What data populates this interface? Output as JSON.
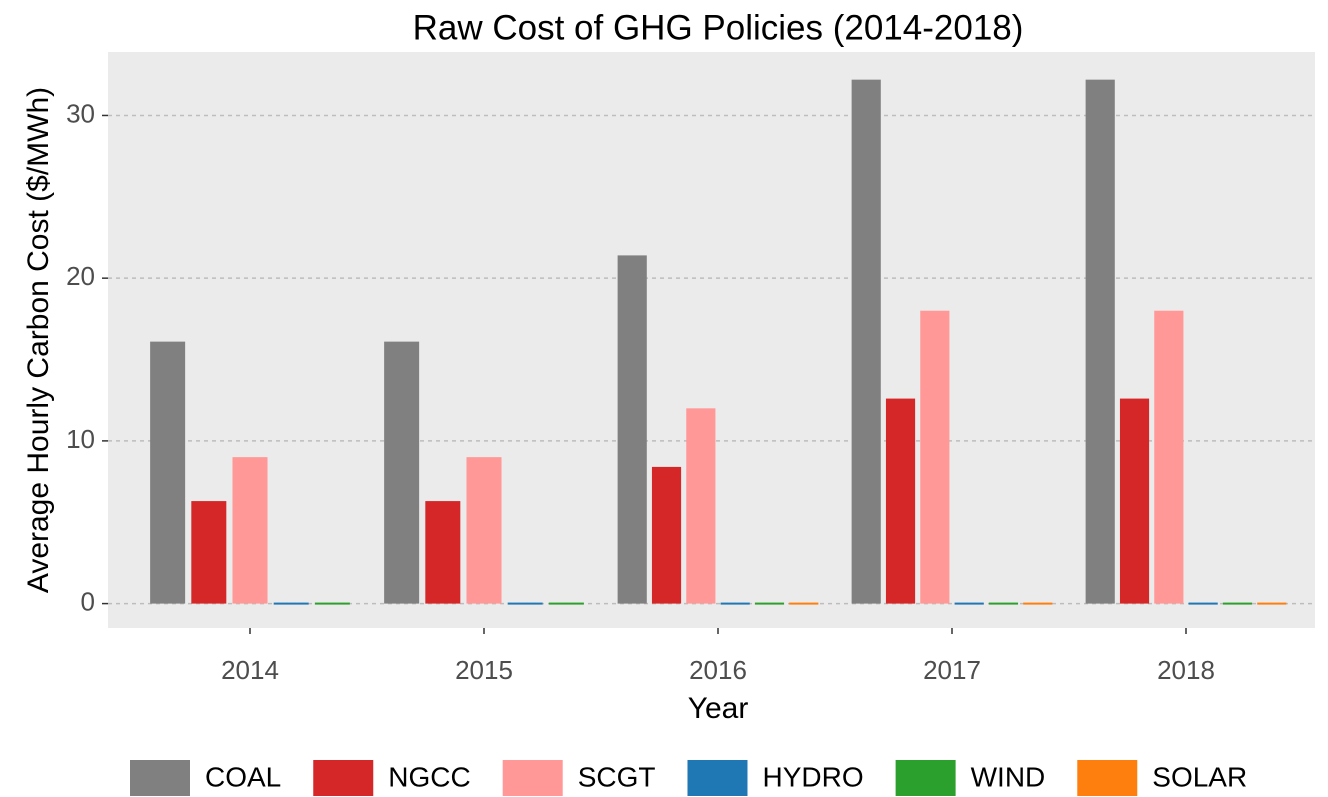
{
  "chart_data": {
    "type": "bar",
    "title": "Raw Cost of GHG Policies (2014-2018)",
    "x_label": "Year",
    "y_label": "Average Hourly Carbon Cost ($/MWh)",
    "categories": [
      "2014",
      "2015",
      "2016",
      "2017",
      "2018"
    ],
    "series": [
      {
        "name": "COAL",
        "color": "#808080",
        "values": [
          16.1,
          16.1,
          21.4,
          32.2,
          32.2
        ]
      },
      {
        "name": "NGCC",
        "color": "#d62728",
        "values": [
          6.3,
          6.3,
          8.4,
          12.6,
          12.6
        ]
      },
      {
        "name": "SCGT",
        "color": "#ff9896",
        "values": [
          9.0,
          9.0,
          12.0,
          18.0,
          18.0
        ]
      },
      {
        "name": "HYDRO",
        "color": "#1f77b4",
        "values": [
          0,
          0,
          0,
          0,
          0
        ]
      },
      {
        "name": "WIND",
        "color": "#2ca02c",
        "values": [
          0,
          0,
          0,
          0,
          0
        ]
      },
      {
        "name": "SOLAR",
        "color": "#ff7f0e",
        "values": [
          null,
          null,
          0,
          0,
          0
        ]
      }
    ],
    "ylim": [
      -1.5,
      33.9
    ],
    "yticks": [
      0,
      10,
      20,
      30
    ],
    "grid": true,
    "legend": "bottom"
  }
}
